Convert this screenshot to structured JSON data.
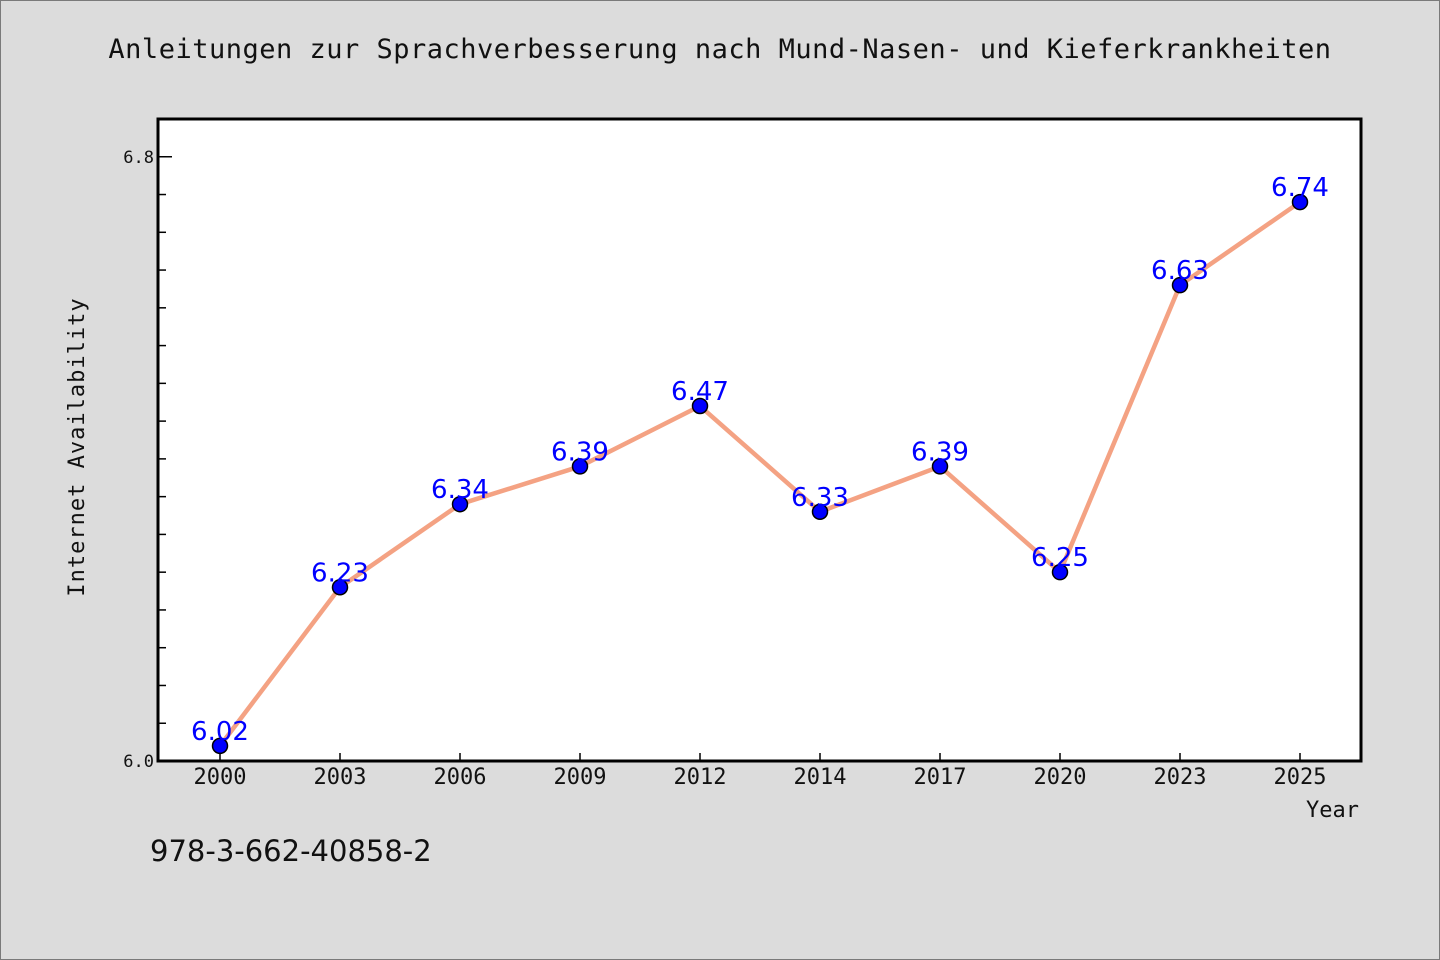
{
  "chart_data": {
    "type": "line",
    "title": "Anleitungen zur Sprachverbesserung nach Mund-Nasen- und Kieferkrankheiten",
    "xlabel": "Year",
    "ylabel": "Internet Availability",
    "categories": [
      "2000",
      "2003",
      "2006",
      "2009",
      "2012",
      "2014",
      "2017",
      "2020",
      "2023",
      "2025"
    ],
    "series": [
      {
        "values": [
          6.02,
          6.23,
          6.34,
          6.39,
          6.47,
          6.33,
          6.39,
          6.25,
          6.63,
          6.74
        ],
        "data_labels": [
          "6.02",
          "6.23",
          "6.34",
          "6.39",
          "6.47",
          "6.33",
          "6.39",
          "6.25",
          "6.63",
          "6.74"
        ]
      }
    ],
    "ylim": [
      6.0,
      6.85
    ],
    "y_ticks": [
      "6.0",
      "6.8"
    ],
    "grid": false,
    "colors": {
      "line": "#f4a283",
      "marker": "#0000ff",
      "label": "#0000ff"
    }
  },
  "footer": {
    "isbn": "978-3-662-40858-2"
  }
}
